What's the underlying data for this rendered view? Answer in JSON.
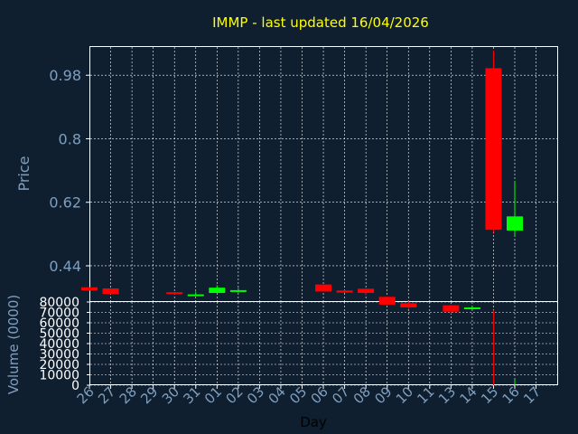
{
  "chart_data": {
    "type": "candlestick",
    "title": "IMMP - last updated 16/04/2026",
    "xlabel": "Day",
    "ylabel": "Price",
    "volume_ylabel": "Volume (0000)",
    "grid": true,
    "colors": {
      "background": "#0f1f30",
      "up": "#00ff00",
      "down": "#ff0000",
      "title": "#ffff00",
      "axis_text": "#7f9fbf",
      "grid": "#ffffff"
    },
    "categories": [
      "26",
      "27",
      "28",
      "29",
      "30",
      "31",
      "01",
      "02",
      "03",
      "04",
      "05",
      "06",
      "07",
      "08",
      "09",
      "10",
      "11",
      "13",
      "14",
      "15",
      "16",
      "17"
    ],
    "price_axis": {
      "ylim": [
        0.34,
        1.06
      ],
      "ticks": [
        "0.44",
        "0.62",
        "0.8",
        "0.98"
      ],
      "tick_values": [
        0.44,
        0.62,
        0.8,
        0.98
      ]
    },
    "volume_axis": {
      "ylim": [
        0,
        80000
      ],
      "ticks": [
        "0",
        "10000",
        "20000",
        "30000",
        "40000",
        "50000",
        "60000",
        "70000",
        "80000"
      ],
      "tick_values": [
        0,
        10000,
        20000,
        30000,
        40000,
        50000,
        60000,
        70000,
        80000
      ]
    },
    "candles": [
      {
        "x": "26",
        "open": 0.379,
        "close": 0.37,
        "high": 0.38,
        "low": 0.369,
        "volume": 0
      },
      {
        "x": "27",
        "open": 0.376,
        "close": 0.36,
        "high": 0.376,
        "low": 0.36,
        "volume": 0
      },
      {
        "x": "30",
        "open": 0.365,
        "close": 0.36,
        "high": 0.366,
        "low": 0.359,
        "volume": 0
      },
      {
        "x": "31",
        "open": 0.358,
        "close": 0.359,
        "high": 0.367,
        "low": 0.355,
        "volume": 0
      },
      {
        "x": "01",
        "open": 0.363,
        "close": 0.378,
        "high": 0.385,
        "low": 0.362,
        "volume": 0
      },
      {
        "x": "02",
        "open": 0.367,
        "close": 0.371,
        "high": 0.377,
        "low": 0.364,
        "volume": 0
      },
      {
        "x": "06",
        "open": 0.387,
        "close": 0.367,
        "high": 0.387,
        "low": 0.367,
        "volume": 0
      },
      {
        "x": "07",
        "open": 0.37,
        "close": 0.364,
        "high": 0.371,
        "low": 0.363,
        "volume": 0
      },
      {
        "x": "08",
        "open": 0.375,
        "close": 0.363,
        "high": 0.376,
        "low": 0.357,
        "volume": 0
      },
      {
        "x": "09",
        "open": 0.352,
        "close": 0.33,
        "high": 0.353,
        "low": 0.33,
        "volume": 0
      },
      {
        "x": "10",
        "open": 0.334,
        "close": 0.322,
        "high": 0.34,
        "low": 0.318,
        "volume": 0
      },
      {
        "x": "13",
        "open": 0.328,
        "close": 0.31,
        "high": 0.33,
        "low": 0.304,
        "volume": 0
      },
      {
        "x": "14",
        "open": 0.32,
        "close": 0.322,
        "high": 0.326,
        "low": 0.316,
        "volume": 0
      },
      {
        "x": "15",
        "open": 1.0,
        "close": 0.542,
        "high": 1.05,
        "low": 0.535,
        "volume": 72000
      },
      {
        "x": "16",
        "open": 0.54,
        "close": 0.58,
        "high": 0.68,
        "low": 0.525,
        "volume": 6000
      }
    ]
  }
}
